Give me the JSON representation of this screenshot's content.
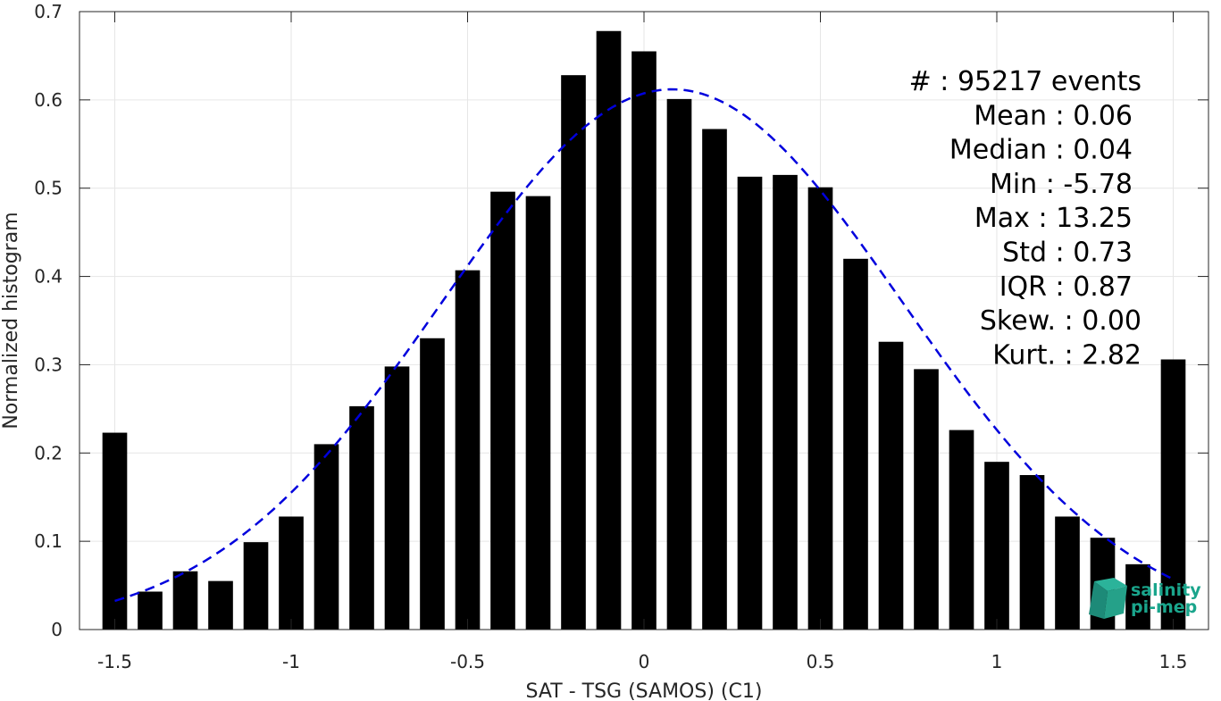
{
  "chart_data": {
    "type": "bar",
    "xlabel": "SAT - TSG (SAMOS) (C1)",
    "ylabel": "Normalized histogram",
    "xlim": [
      -1.6,
      1.6
    ],
    "ylim": [
      0,
      0.7
    ],
    "xticks": [
      -1.5,
      -1,
      -0.5,
      0,
      0.5,
      1,
      1.5
    ],
    "xtick_labels": [
      "-1.5",
      "-1",
      "-0.5",
      "0",
      "0.5",
      "1",
      "1.5"
    ],
    "yticks": [
      0,
      0.1,
      0.2,
      0.3,
      0.4,
      0.5,
      0.6,
      0.7
    ],
    "ytick_labels": [
      "0",
      "0.1",
      "0.2",
      "0.3",
      "0.4",
      "0.5",
      "0.6",
      "0.7"
    ],
    "grid": true,
    "bar_color": "#000000",
    "bar_width": 0.07,
    "x": [
      -1.5,
      -1.4,
      -1.3,
      -1.2,
      -1.1,
      -1.0,
      -0.9,
      -0.8,
      -0.7,
      -0.6,
      -0.5,
      -0.4,
      -0.3,
      -0.2,
      -0.1,
      0.0,
      0.1,
      0.2,
      0.3,
      0.4,
      0.5,
      0.6,
      0.7,
      0.8,
      0.9,
      1.0,
      1.1,
      1.2,
      1.3,
      1.4,
      1.5
    ],
    "values": [
      0.223,
      0.043,
      0.066,
      0.055,
      0.099,
      0.128,
      0.21,
      0.253,
      0.298,
      0.33,
      0.407,
      0.496,
      0.491,
      0.628,
      0.678,
      0.655,
      0.601,
      0.567,
      0.513,
      0.515,
      0.501,
      0.42,
      0.326,
      0.295,
      0.226,
      0.19,
      0.175,
      0.128,
      0.104,
      0.074,
      0.306
    ],
    "fit_curve": {
      "style": "dashed",
      "color": "#0000dd",
      "mean": 0.08,
      "std": 0.652,
      "peak": 0.612,
      "x_range": [
        -1.5,
        1.5
      ]
    },
    "stats": [
      "#  : 95217 events",
      "Mean : 0.06",
      "Median : 0.04",
      "Min : -5.78",
      "Max : 13.25",
      "Std : 0.73",
      "IQR : 0.87",
      "Skew. : 0.00",
      "Kurt. : 2.82"
    ],
    "logo": [
      "salinity",
      "pi-mep"
    ]
  }
}
